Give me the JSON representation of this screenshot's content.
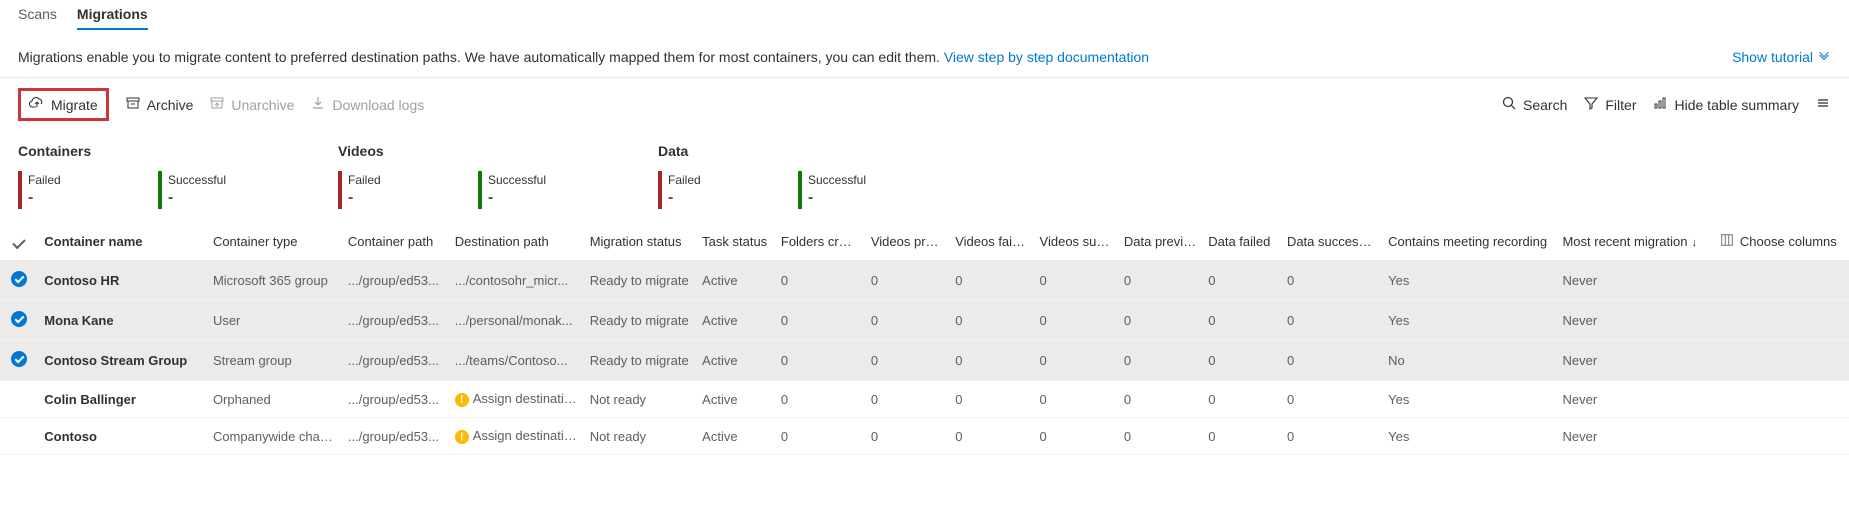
{
  "tabs": {
    "scans": "Scans",
    "migrations": "Migrations"
  },
  "description": {
    "text": "Migrations enable you to migrate content to preferred destination paths. We have automatically mapped them for most containers, you can edit them.",
    "link": "View step by step documentation",
    "tutorial": "Show tutorial"
  },
  "toolbar": {
    "migrate": "Migrate",
    "archive": "Archive",
    "unarchive": "Unarchive",
    "download_logs": "Download logs",
    "search": "Search",
    "filter": "Filter",
    "hide_summary": "Hide table summary"
  },
  "summary": {
    "groups": [
      {
        "title": "Containers",
        "failed_label": "Failed",
        "failed_val": "-",
        "success_label": "Successful",
        "success_val": "-"
      },
      {
        "title": "Videos",
        "failed_label": "Failed",
        "failed_val": "-",
        "success_label": "Successful",
        "success_val": "-"
      },
      {
        "title": "Data",
        "failed_label": "Failed",
        "failed_val": "-",
        "success_label": "Successful",
        "success_val": "-"
      }
    ]
  },
  "columns": {
    "name": "Container name",
    "type": "Container type",
    "path": "Container path",
    "dest": "Destination path",
    "mig_status": "Migration status",
    "task_status": "Task status",
    "folders": "Folders created",
    "v_prev": "Videos prev...",
    "v_failed": "Videos failed",
    "v_succ": "Videos succ...",
    "d_prev": "Data previo...",
    "d_failed": "Data failed",
    "d_succ": "Data successful",
    "meeting": "Contains meeting recording",
    "recent": "Most recent migration",
    "choose": "Choose columns"
  },
  "rows": [
    {
      "selected": true,
      "name": "Contoso HR",
      "type": "Microsoft 365 group",
      "path": ".../group/ed53...",
      "dest": ".../contosohr_micr...",
      "warn": false,
      "mig_status": "Ready to migrate",
      "task_status": "Active",
      "folders": "0",
      "v_prev": "0",
      "v_failed": "0",
      "v_succ": "0",
      "d_prev": "0",
      "d_failed": "0",
      "d_succ": "0",
      "meeting": "Yes",
      "recent": "Never"
    },
    {
      "selected": true,
      "name": "Mona Kane",
      "type": "User",
      "path": ".../group/ed53...",
      "dest": ".../personal/monak...",
      "warn": false,
      "mig_status": "Ready to migrate",
      "task_status": "Active",
      "folders": "0",
      "v_prev": "0",
      "v_failed": "0",
      "v_succ": "0",
      "d_prev": "0",
      "d_failed": "0",
      "d_succ": "0",
      "meeting": "Yes",
      "recent": "Never"
    },
    {
      "selected": true,
      "name": "Contoso Stream Group",
      "type": "Stream group",
      "path": ".../group/ed53...",
      "dest": ".../teams/Contoso...",
      "warn": false,
      "mig_status": "Ready to migrate",
      "task_status": "Active",
      "folders": "0",
      "v_prev": "0",
      "v_failed": "0",
      "v_succ": "0",
      "d_prev": "0",
      "d_failed": "0",
      "d_succ": "0",
      "meeting": "No",
      "recent": "Never"
    },
    {
      "selected": false,
      "name": "Colin Ballinger",
      "type": "Orphaned",
      "path": ".../group/ed53...",
      "dest": "Assign destination",
      "warn": true,
      "mig_status": "Not ready",
      "task_status": "Active",
      "folders": "0",
      "v_prev": "0",
      "v_failed": "0",
      "v_succ": "0",
      "d_prev": "0",
      "d_failed": "0",
      "d_succ": "0",
      "meeting": "Yes",
      "recent": "Never"
    },
    {
      "selected": false,
      "name": "Contoso",
      "type": "Companywide channel",
      "path": ".../group/ed53...",
      "dest": "Assign destination",
      "warn": true,
      "mig_status": "Not ready",
      "task_status": "Active",
      "folders": "0",
      "v_prev": "0",
      "v_failed": "0",
      "v_succ": "0",
      "d_prev": "0",
      "d_failed": "0",
      "d_succ": "0",
      "meeting": "Yes",
      "recent": "Never"
    }
  ],
  "colors": {
    "accent": "#0078d4",
    "fail": "#a4262c",
    "success": "#107c10",
    "highlight_border": "#d13438",
    "selected_row_bg": "#edebe9"
  }
}
